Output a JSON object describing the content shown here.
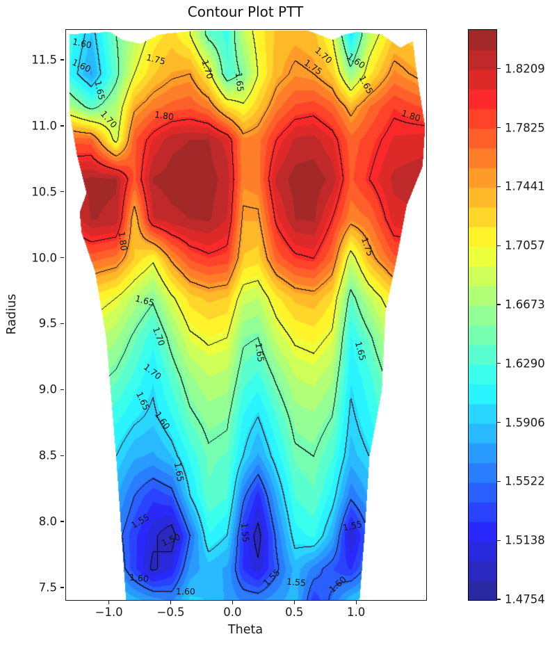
{
  "title": "Contour Plot PTT",
  "axes": {
    "xlabel": "Theta",
    "ylabel": "Radius",
    "xlim": [
      -1.3525,
      1.5617
    ],
    "ylim": [
      7.41,
      11.732
    ],
    "xticks": [
      {
        "v": -1.0,
        "label": "−1.0"
      },
      {
        "v": -0.5,
        "label": "−0.5"
      },
      {
        "v": 0.0,
        "label": "0.0"
      },
      {
        "v": 0.5,
        "label": "0.5"
      },
      {
        "v": 1.0,
        "label": "1.0"
      }
    ],
    "yticks": [
      {
        "v": 7.5,
        "label": "7.5"
      },
      {
        "v": 8.0,
        "label": "8.0"
      },
      {
        "v": 8.5,
        "label": "8.5"
      },
      {
        "v": 9.0,
        "label": "9.0"
      },
      {
        "v": 9.5,
        "label": "9.5"
      },
      {
        "v": 10.0,
        "label": "10.0"
      },
      {
        "v": 10.5,
        "label": "10.5"
      },
      {
        "v": 11.0,
        "label": "11.0"
      },
      {
        "v": 11.5,
        "label": "11.5"
      }
    ]
  },
  "colorbar": {
    "vmin": 1.4754,
    "band_step": 0.0128,
    "n_bands": 29,
    "ticks": [
      {
        "v": 1.4754,
        "label": "1.4754"
      },
      {
        "v": 1.5138,
        "label": "1.5138"
      },
      {
        "v": 1.5522,
        "label": "1.5522"
      },
      {
        "v": 1.5906,
        "label": "1.5906"
      },
      {
        "v": 1.629,
        "label": "1.6290"
      },
      {
        "v": 1.6673,
        "label": "1.6673"
      },
      {
        "v": 1.7057,
        "label": "1.7057"
      },
      {
        "v": 1.7441,
        "label": "1.7441"
      },
      {
        "v": 1.7825,
        "label": "1.7825"
      },
      {
        "v": 1.8209,
        "label": "1.8209"
      }
    ]
  },
  "chart_data": {
    "type": "contour",
    "title": "Contour Plot PTT",
    "xlabel": "Theta",
    "ylabel": "Radius",
    "colormap": "jet softened 16% toward white",
    "fill_levels": {
      "min": 1.4754,
      "step": 0.0128,
      "count": 29
    },
    "line_levels": [
      1.5,
      1.55,
      1.6,
      1.65,
      1.7,
      1.75,
      1.8
    ],
    "grid": {
      "theta": [
        -1.35,
        -1.15,
        -0.95,
        -0.8,
        -0.65,
        -0.5,
        -0.35,
        -0.2,
        -0.05,
        0.08,
        0.2,
        0.35,
        0.5,
        0.65,
        0.8,
        0.95,
        1.1,
        1.3,
        1.55
      ],
      "r": [
        7.4,
        7.65,
        7.9,
        8.2,
        8.5,
        8.8,
        9.1,
        9.4,
        9.7,
        10.0,
        10.3,
        10.6,
        10.9,
        11.15,
        11.4,
        11.7
      ],
      "z": [
        [
          1.61,
          1.61,
          1.6,
          1.585,
          1.575,
          1.565,
          1.595,
          1.59,
          1.575,
          1.565,
          1.565,
          1.575,
          1.585,
          1.53,
          1.555,
          1.59,
          1.605,
          1.61,
          1.61
        ],
        [
          1.6,
          1.6,
          1.57,
          1.53,
          1.495,
          1.515,
          1.57,
          1.585,
          1.575,
          1.525,
          1.505,
          1.545,
          1.585,
          1.56,
          1.54,
          1.525,
          1.56,
          1.59,
          1.6
        ],
        [
          1.6,
          1.59,
          1.56,
          1.53,
          1.505,
          1.485,
          1.55,
          1.615,
          1.6,
          1.525,
          1.49,
          1.555,
          1.61,
          1.62,
          1.58,
          1.5,
          1.55,
          1.59,
          1.6
        ],
        [
          1.61,
          1.6,
          1.58,
          1.55,
          1.53,
          1.54,
          1.6,
          1.64,
          1.63,
          1.555,
          1.52,
          1.58,
          1.63,
          1.64,
          1.61,
          1.555,
          1.58,
          1.61,
          1.62
        ],
        [
          1.62,
          1.62,
          1.6,
          1.58,
          1.575,
          1.59,
          1.62,
          1.645,
          1.64,
          1.6,
          1.575,
          1.61,
          1.645,
          1.65,
          1.63,
          1.585,
          1.6,
          1.625,
          1.63
        ],
        [
          1.64,
          1.64,
          1.62,
          1.605,
          1.595,
          1.615,
          1.645,
          1.66,
          1.655,
          1.615,
          1.6,
          1.63,
          1.66,
          1.665,
          1.65,
          1.595,
          1.615,
          1.645,
          1.65
        ],
        [
          1.66,
          1.66,
          1.645,
          1.625,
          1.605,
          1.635,
          1.665,
          1.68,
          1.675,
          1.635,
          1.625,
          1.655,
          1.68,
          1.685,
          1.67,
          1.605,
          1.625,
          1.665,
          1.67
        ],
        [
          1.685,
          1.685,
          1.67,
          1.645,
          1.62,
          1.66,
          1.695,
          1.705,
          1.7,
          1.655,
          1.65,
          1.685,
          1.705,
          1.71,
          1.695,
          1.615,
          1.645,
          1.69,
          1.7
        ],
        [
          1.715,
          1.715,
          1.7,
          1.675,
          1.655,
          1.695,
          1.725,
          1.735,
          1.73,
          1.685,
          1.68,
          1.715,
          1.735,
          1.74,
          1.72,
          1.64,
          1.68,
          1.72,
          1.73
        ],
        [
          1.77,
          1.775,
          1.765,
          1.73,
          1.705,
          1.755,
          1.785,
          1.795,
          1.79,
          1.73,
          1.725,
          1.775,
          1.795,
          1.8,
          1.77,
          1.685,
          1.74,
          1.78,
          1.785
        ],
        [
          1.8,
          1.835,
          1.83,
          1.735,
          1.82,
          1.83,
          1.834,
          1.836,
          1.82,
          1.745,
          1.745,
          1.805,
          1.834,
          1.836,
          1.8,
          1.76,
          1.77,
          1.815,
          1.82
        ],
        [
          1.825,
          1.838,
          1.836,
          1.78,
          1.835,
          1.84,
          1.841,
          1.84,
          1.828,
          1.76,
          1.765,
          1.825,
          1.84,
          1.842,
          1.83,
          1.78,
          1.8,
          1.825,
          1.83
        ],
        [
          1.78,
          1.775,
          1.69,
          1.78,
          1.81,
          1.83,
          1.834,
          1.834,
          1.815,
          1.76,
          1.765,
          1.8,
          1.824,
          1.826,
          1.81,
          1.775,
          1.79,
          1.81,
          1.815
        ],
        [
          1.68,
          1.64,
          1.675,
          1.745,
          1.765,
          1.775,
          1.78,
          1.765,
          1.72,
          1.705,
          1.73,
          1.765,
          1.785,
          1.79,
          1.775,
          1.74,
          1.77,
          1.795,
          1.78
        ],
        [
          1.62,
          1.575,
          1.64,
          1.7,
          1.73,
          1.745,
          1.75,
          1.71,
          1.63,
          1.655,
          1.7,
          1.74,
          1.755,
          1.75,
          1.73,
          1.66,
          1.715,
          1.76,
          1.74
        ],
        [
          1.63,
          1.59,
          1.65,
          1.675,
          1.71,
          1.725,
          1.7,
          1.64,
          1.625,
          1.68,
          1.71,
          1.735,
          1.74,
          1.735,
          1.7,
          1.6,
          1.68,
          1.73,
          1.72
        ]
      ]
    },
    "boundary": {
      "left": {
        "r": [
          7.41,
          8.5,
          9.4,
          9.9,
          10.2,
          10.35,
          10.5,
          10.8,
          11.1,
          11.75
        ],
        "theta": [
          -0.87,
          -0.95,
          -1.03,
          -1.12,
          -1.23,
          -1.245,
          -1.19,
          -1.27,
          -1.325,
          -1.33
        ]
      },
      "right": {
        "r": [
          7.41,
          7.9,
          8.5,
          9.0,
          9.6,
          10.0,
          10.4,
          10.7,
          11.0,
          11.3,
          11.5,
          11.75
        ],
        "theta": [
          1.02,
          1.06,
          1.1,
          1.2,
          1.23,
          1.32,
          1.4,
          1.53,
          1.55,
          1.5,
          1.47,
          1.44
        ]
      },
      "top": {
        "theta": [
          -1.35,
          -1.0,
          -0.9,
          -0.75,
          -0.6,
          -0.3,
          0.6,
          0.8,
          0.9,
          1.0,
          1.2,
          1.35,
          1.45,
          1.56
        ],
        "r": [
          11.7,
          11.72,
          11.66,
          11.63,
          11.7,
          11.73,
          11.73,
          11.66,
          11.7,
          11.72,
          11.7,
          11.6,
          11.65,
          11.5
        ]
      },
      "r_bottom": 7.41
    },
    "contour_labels": [
      {
        "text": "1.60",
        "theta": -1.223,
        "r": 11.627,
        "rot": 12
      },
      {
        "text": "1.60",
        "theta": -1.229,
        "r": 11.458,
        "rot": 25
      },
      {
        "text": "1.65",
        "theta": -1.083,
        "r": 11.273,
        "rot": 78
      },
      {
        "text": "1.70",
        "theta": -1.01,
        "r": 11.051,
        "rot": 48
      },
      {
        "text": "1.75",
        "theta": -0.627,
        "r": 11.505,
        "rot": 14
      },
      {
        "text": "1.80",
        "theta": -0.559,
        "r": 11.077,
        "rot": 8
      },
      {
        "text": "1.70",
        "theta": -0.21,
        "r": 11.432,
        "rot": 72
      },
      {
        "text": "1.65",
        "theta": 0.048,
        "r": 11.336,
        "rot": 84
      },
      {
        "text": "1.75",
        "theta": 0.645,
        "r": 11.447,
        "rot": 35
      },
      {
        "text": "1.70",
        "theta": 0.729,
        "r": 11.537,
        "rot": 42
      },
      {
        "text": "1.60",
        "theta": 0.994,
        "r": 11.495,
        "rot": 36
      },
      {
        "text": "1.65",
        "theta": 1.073,
        "r": 11.315,
        "rot": 62
      },
      {
        "text": "1.80",
        "theta": 1.438,
        "r": 11.077,
        "rot": 18
      },
      {
        "text": "1.80",
        "theta": -0.897,
        "r": 10.13,
        "rot": 82
      },
      {
        "text": "1.75",
        "theta": 1.084,
        "r": 10.088,
        "rot": 70
      },
      {
        "text": "1.65",
        "theta": 1.028,
        "r": 9.299,
        "rot": 75
      },
      {
        "text": "1.65",
        "theta": -0.717,
        "r": 9.675,
        "rot": 15
      },
      {
        "text": "1.70",
        "theta": -0.604,
        "r": 9.405,
        "rot": 70
      },
      {
        "text": "1.70",
        "theta": -0.655,
        "r": 9.14,
        "rot": 38
      },
      {
        "text": "1.65",
        "theta": -0.734,
        "r": 8.918,
        "rot": 65
      },
      {
        "text": "1.60",
        "theta": -0.576,
        "r": 8.77,
        "rot": 55
      },
      {
        "text": "1.65",
        "theta": -0.441,
        "r": 8.378,
        "rot": 80
      },
      {
        "text": "1.65",
        "theta": 0.212,
        "r": 9.288,
        "rot": 82
      },
      {
        "text": "1.55",
        "theta": -0.751,
        "r": 8.008,
        "rot": -30
      },
      {
        "text": "1.50",
        "theta": -0.503,
        "r": 7.865,
        "rot": -22
      },
      {
        "text": "1.60",
        "theta": -0.762,
        "r": 7.574,
        "rot": 5
      },
      {
        "text": "1.60",
        "theta": -0.385,
        "r": 7.474,
        "rot": 0
      },
      {
        "text": "1.55",
        "theta": 0.093,
        "r": 7.923,
        "rot": 85
      },
      {
        "text": "1.55",
        "theta": 0.966,
        "r": 7.971,
        "rot": -12
      },
      {
        "text": "1.60",
        "theta": 0.847,
        "r": 7.526,
        "rot": -42
      },
      {
        "text": "1.55",
        "theta": 0.313,
        "r": 7.579,
        "rot": -45
      },
      {
        "text": "1.55",
        "theta": 0.51,
        "r": 7.542,
        "rot": 5
      }
    ]
  }
}
